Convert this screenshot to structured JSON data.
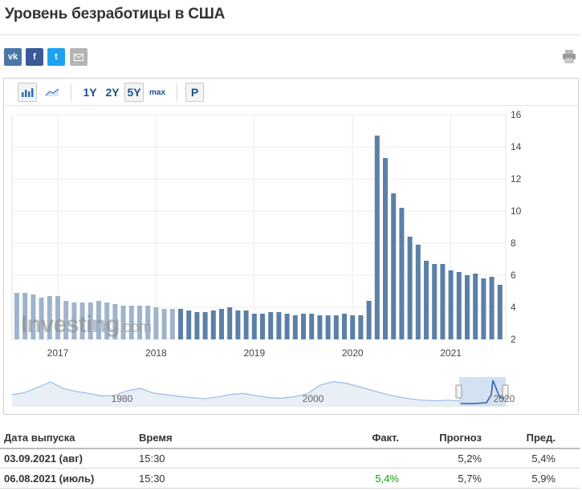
{
  "page": {
    "title": "Уровень безработицы в США"
  },
  "share": {
    "vk": "vk",
    "fb": "f",
    "tw": "t"
  },
  "toolbar": {
    "range_1y": "1Y",
    "range_2y": "2Y",
    "range_5y": "5Y",
    "range_max": "max",
    "mode_p": "P"
  },
  "chart_data": {
    "type": "bar",
    "ylim": [
      2,
      16
    ],
    "yticks": [
      "16",
      "14",
      "12",
      "10",
      "8",
      "6",
      "4",
      "2"
    ],
    "xticks": [
      "2017",
      "2018",
      "2019",
      "2020",
      "2021"
    ],
    "watermark": "Investing.com",
    "categories": [
      "Aug 2016",
      "Sep 2016",
      "Oct 2016",
      "Nov 2016",
      "Dec 2016",
      "Jan 2017",
      "Feb 2017",
      "Mar 2017",
      "Apr 2017",
      "May 2017",
      "Jun 2017",
      "Jul 2017",
      "Aug 2017",
      "Sep 2017",
      "Oct 2017",
      "Nov 2017",
      "Dec 2017",
      "Jan 2018",
      "Feb 2018",
      "Mar 2018",
      "Apr 2018",
      "May 2018",
      "Jun 2018",
      "Jul 2018",
      "Aug 2018",
      "Sep 2018",
      "Oct 2018",
      "Nov 2018",
      "Dec 2018",
      "Jan 2019",
      "Feb 2019",
      "Mar 2019",
      "Apr 2019",
      "May 2019",
      "Jun 2019",
      "Jul 2019",
      "Aug 2019",
      "Sep 2019",
      "Oct 2019",
      "Nov 2019",
      "Dec 2019",
      "Jan 2020",
      "Feb 2020",
      "Mar 2020",
      "Apr 2020",
      "May 2020",
      "Jun 2020",
      "Jul 2020",
      "Aug 2020",
      "Sep 2020",
      "Oct 2020",
      "Nov 2020",
      "Dec 2020",
      "Jan 2021",
      "Feb 2021",
      "Mar 2021",
      "Apr 2021",
      "May 2021",
      "Jun 2021",
      "Jul 2021"
    ],
    "values": [
      4.9,
      4.9,
      4.8,
      4.6,
      4.7,
      4.7,
      4.4,
      4.3,
      4.3,
      4.3,
      4.4,
      4.3,
      4.2,
      4.1,
      4.1,
      4.1,
      4.1,
      4.0,
      3.9,
      3.9,
      3.9,
      3.8,
      3.7,
      3.7,
      3.8,
      3.9,
      4.0,
      3.8,
      3.8,
      3.6,
      3.6,
      3.7,
      3.7,
      3.6,
      3.5,
      3.6,
      3.6,
      3.5,
      3.5,
      3.5,
      3.6,
      3.5,
      3.5,
      4.4,
      14.7,
      13.3,
      11.1,
      10.2,
      8.4,
      7.9,
      6.9,
      6.7,
      6.7,
      6.3,
      6.2,
      6.0,
      6.1,
      5.8,
      5.9,
      5.4
    ],
    "navigator": {
      "labels": [
        "1980",
        "2000",
        "2020"
      ]
    }
  },
  "table": {
    "headers": {
      "date": "Дата выпуска",
      "time": "Время",
      "actual": "Факт.",
      "forecast": "Прогноз",
      "previous": "Пред."
    },
    "rows": [
      {
        "date": "03.09.2021 (авг)",
        "time": "15:30",
        "actual": "",
        "forecast": "5,2%",
        "previous": "5,4%"
      },
      {
        "date": "06.08.2021 (июль)",
        "time": "15:30",
        "actual": "5,4%",
        "forecast": "5,7%",
        "previous": "5,9%"
      }
    ]
  }
}
